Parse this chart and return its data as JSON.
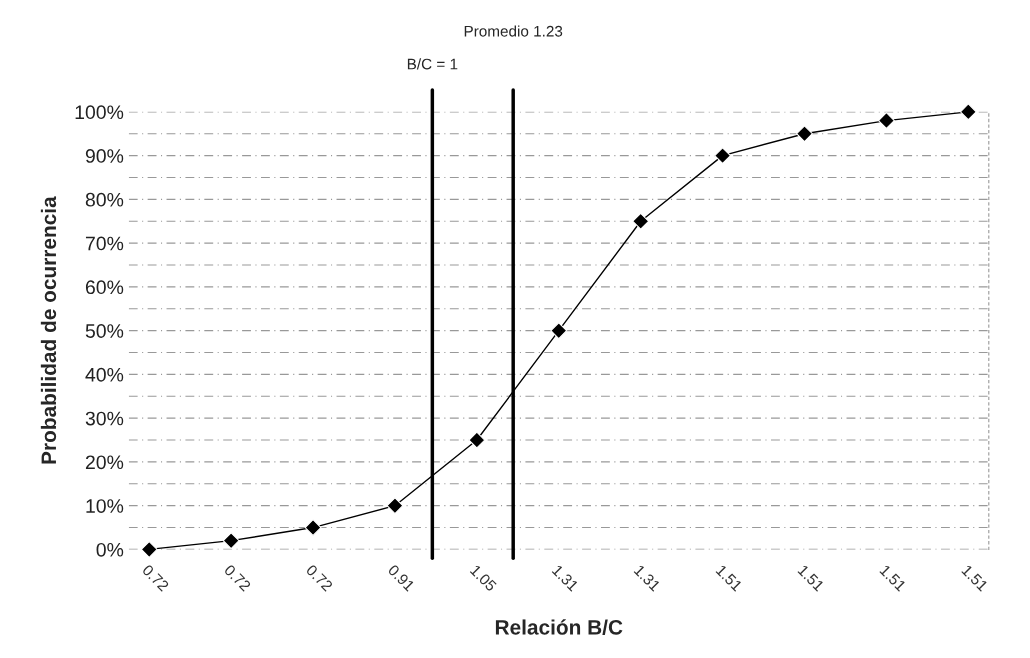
{
  "chart_data": {
    "type": "line",
    "xlabel": "Relación B/C",
    "ylabel": "Probabilidad de ocurrencia",
    "categories": [
      "0.72",
      "0.72",
      "0.72",
      "0.91",
      "1.05",
      "1.31",
      "1.31",
      "1.51",
      "1.51",
      "1.51",
      "1.51"
    ],
    "series": [
      {
        "color": "#000000",
        "values": [
          0,
          2,
          5,
          10,
          25,
          50,
          75,
          90,
          95,
          98,
          100
        ]
      }
    ],
    "ylim": [
      0,
      100
    ],
    "yticks": [
      {
        "value": 0,
        "label": "0%"
      },
      {
        "value": 5,
        "label": null
      },
      {
        "value": 10,
        "label": "10%"
      },
      {
        "value": 15,
        "label": null
      },
      {
        "value": 20,
        "label": "20%"
      },
      {
        "value": 25,
        "label": null
      },
      {
        "value": 30,
        "label": "30%"
      },
      {
        "value": 35,
        "label": null
      },
      {
        "value": 40,
        "label": "40%"
      },
      {
        "value": 45,
        "label": null
      },
      {
        "value": 50,
        "label": "50%"
      },
      {
        "value": 55,
        "label": null
      },
      {
        "value": 60,
        "label": "60%"
      },
      {
        "value": 65,
        "label": null
      },
      {
        "value": 70,
        "label": "70%"
      },
      {
        "value": 75,
        "label": null
      },
      {
        "value": 80,
        "label": "80%"
      },
      {
        "value": 85,
        "label": null
      },
      {
        "value": 90,
        "label": "90%"
      },
      {
        "value": 95,
        "label": null
      },
      {
        "value": 100,
        "label": "100%"
      }
    ],
    "annotations": [
      "B/C = 1",
      "Promedio 1.23"
    ],
    "grid": "y",
    "marker": "diamond",
    "line_style": "solid",
    "legend": false
  }
}
